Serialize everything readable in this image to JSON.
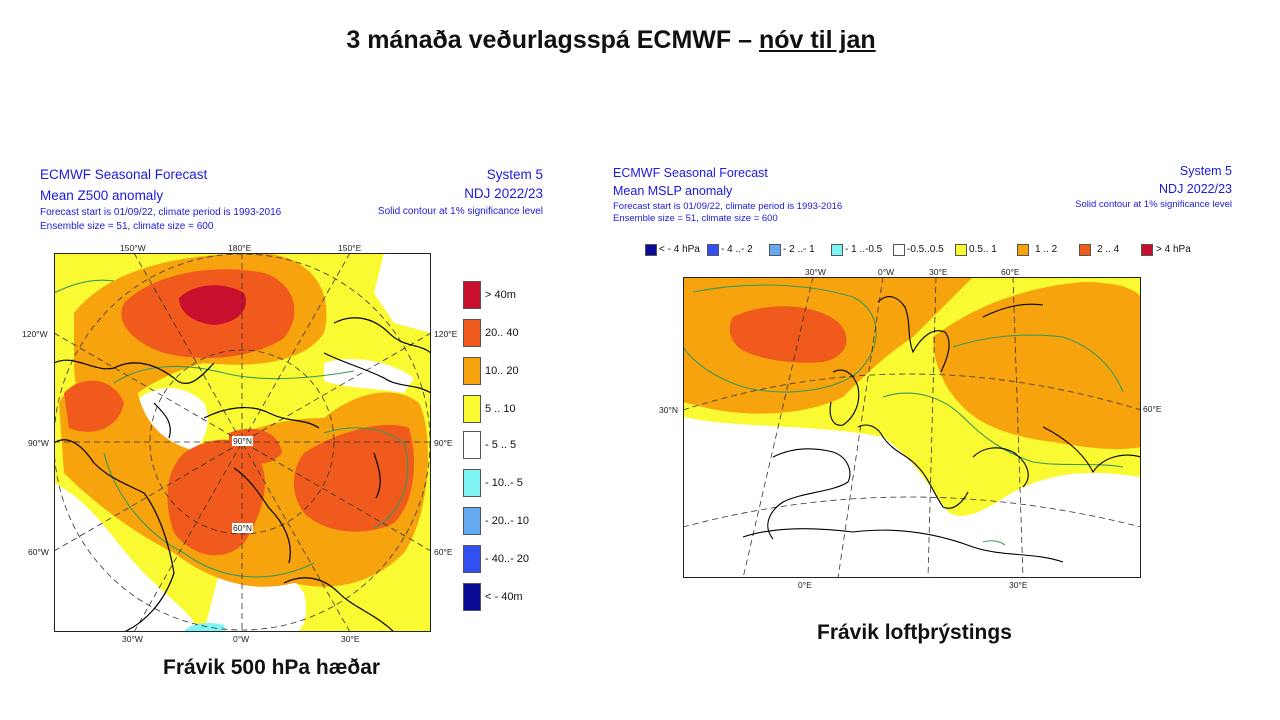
{
  "slide": {
    "title_main": "3 mánaða veðurlagsspá ECMWF – ",
    "title_underlined": "nóv til  jan"
  },
  "left_map": {
    "header_left_1": "ECMWF Seasonal Forecast",
    "header_left_2": "Mean Z500 anomaly",
    "header_left_3": "Forecast start is 01/09/22, climate period is 1993-2016",
    "header_left_4": "Ensemble size = 51, climate size = 600",
    "header_right_1": "System 5",
    "header_right_2": "NDJ 2022/23",
    "header_right_3": "Solid contour at 1% significance level",
    "coords": {
      "top_150w": "150°W",
      "top_180": "180°E",
      "top_150e": "150°E",
      "left_120w": "120°W",
      "left_90w": "90°W",
      "left_60w": "60°W",
      "right_120e": "120°E",
      "right_90e": "90°E",
      "right_60e": "60°E",
      "bottom_30w": "30°W",
      "bottom_0w": "0°W",
      "bottom_30e": "30°E",
      "center_90n": "90°N",
      "center_60n": "60°N"
    },
    "legend": [
      {
        "label": "> 40m",
        "color": "#c8102e"
      },
      {
        "label": "20.. 40",
        "color": "#f05a1c"
      },
      {
        "label": "10.. 20",
        "color": "#f7a30d"
      },
      {
        "label": "5 .. 10",
        "color": "#fafa32"
      },
      {
        "label": "- 5 .. 5",
        "color": "#ffffff"
      },
      {
        "label": "- 10..- 5",
        "color": "#7ef4f4"
      },
      {
        "label": "- 20..- 10",
        "color": "#64aaf0"
      },
      {
        "label": "- 40..- 20",
        "color": "#3250f0"
      },
      {
        "label": "< - 40m",
        "color": "#0a0a96"
      }
    ],
    "caption": "Frávik 500 hPa hæðar"
  },
  "right_map": {
    "header_left_1": "ECMWF Seasonal Forecast",
    "header_left_2": "Mean MSLP anomaly",
    "header_left_3": "Forecast start is 01/09/22, climate period is 1993-2016",
    "header_left_4": "Ensemble size = 51, climate size = 600",
    "header_right_1": "System 5",
    "header_right_2": "NDJ 2022/23",
    "header_right_3": "Solid contour at 1% significance level",
    "legend": [
      {
        "label": "< - 4 hPa",
        "color": "#0a0a96"
      },
      {
        "label": "- 4 ..- 2",
        "color": "#3250f0"
      },
      {
        "label": "- 2 ..- 1",
        "color": "#64aaf0"
      },
      {
        "label": "- 1 ..-0.5",
        "color": "#7ef4f4"
      },
      {
        "label": "-0.5..0.5",
        "color": "#ffffff"
      },
      {
        "label": "0.5.. 1",
        "color": "#fafa32"
      },
      {
        "label": "1 .. 2",
        "color": "#f7a30d"
      },
      {
        "label": "2 .. 4",
        "color": "#f05a1c"
      },
      {
        "label": "> 4 hPa",
        "color": "#c8102e"
      }
    ],
    "coords": {
      "top_30w": "30°W",
      "top_0w": "0°W",
      "top_30e": "30°E",
      "top_60e": "60°E",
      "left_30n": "30°N",
      "right_60e": "60°E",
      "bottom_0e": "0°E",
      "bottom_30e": "30°E"
    },
    "caption": "Frávik loftþrýstings"
  }
}
